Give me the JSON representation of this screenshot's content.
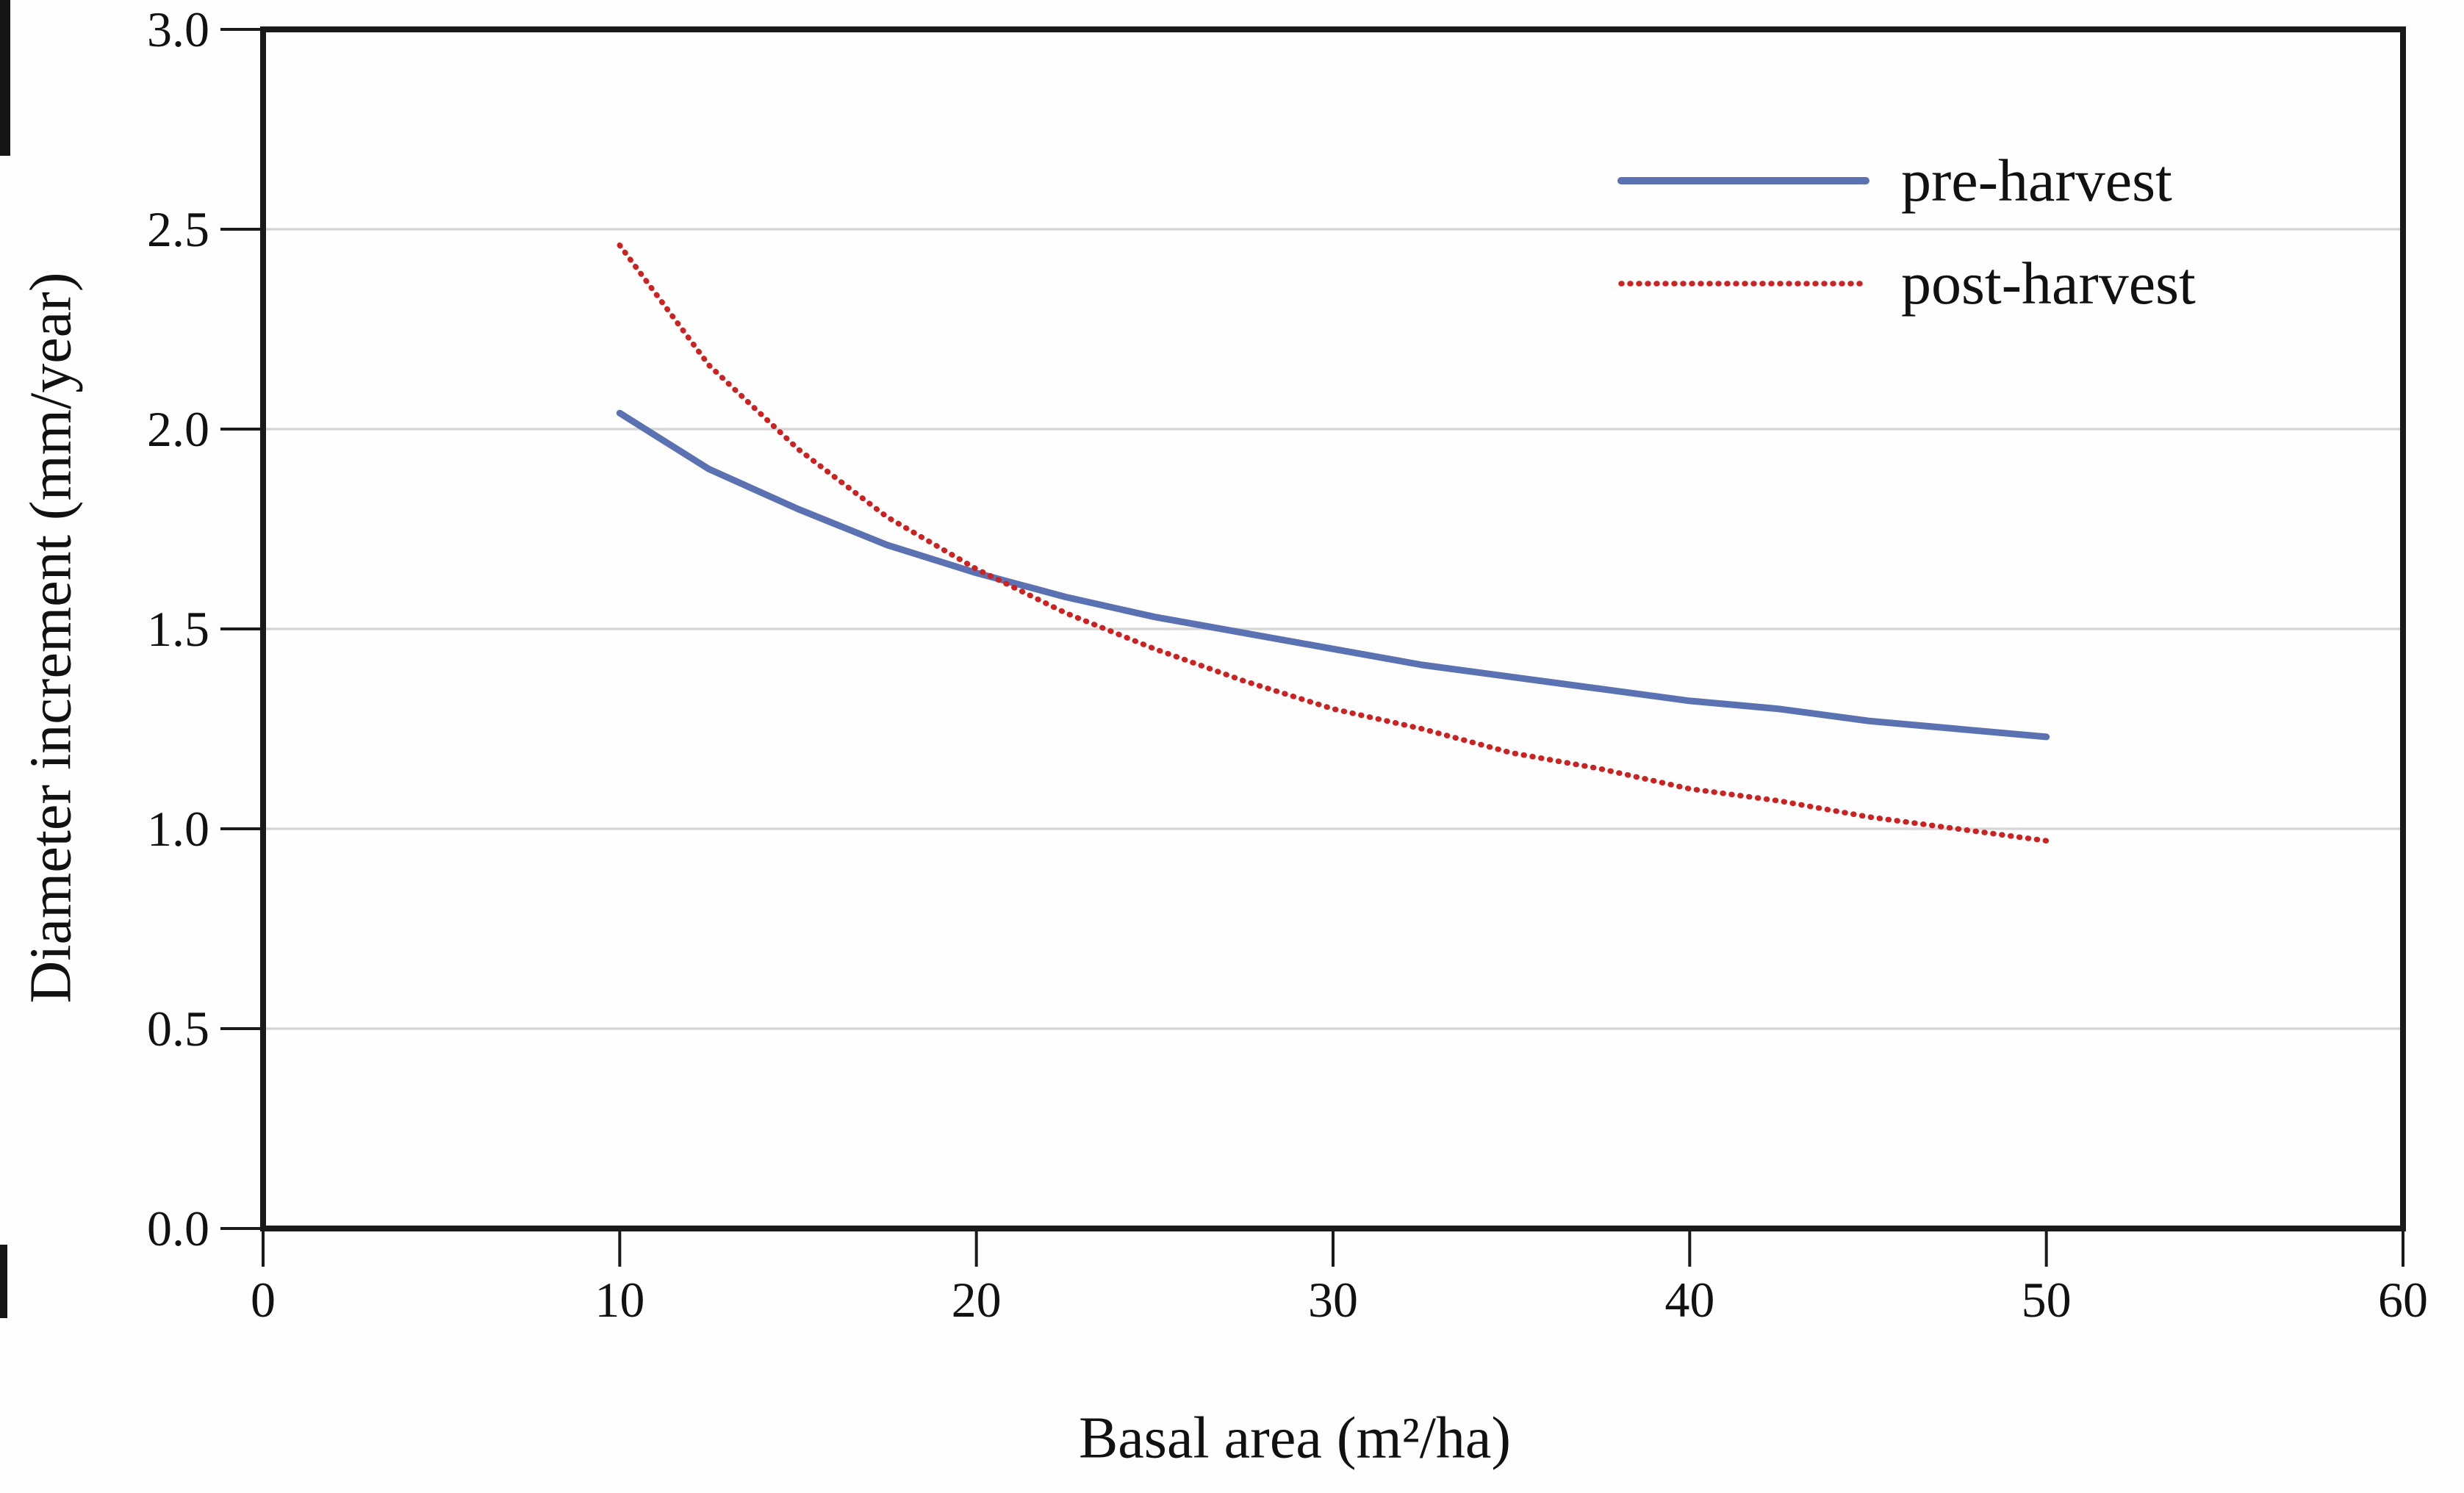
{
  "figure": {
    "background": "#fefefe",
    "axis_color": "#1a1a1a",
    "grid_color": "#d8d8d8"
  },
  "chart_data": {
    "type": "line",
    "title": "",
    "xlabel": "Basal area (m²/ha)",
    "ylabel": "Diameter increment (mm/year)",
    "xlim": [
      0,
      60
    ],
    "ylim": [
      0.0,
      3.0
    ],
    "xticks": [
      0,
      10,
      20,
      30,
      40,
      50,
      60
    ],
    "xtick_labels": [
      "0",
      "10",
      "20",
      "30",
      "40",
      "50",
      "60"
    ],
    "yticks": [
      0.0,
      0.5,
      1.0,
      1.5,
      2.0,
      2.5,
      3.0
    ],
    "ytick_labels": [
      "0.0",
      "0.5",
      "1.0",
      "1.5",
      "2.0",
      "2.5",
      "3.0"
    ],
    "grid": {
      "horizontal": true,
      "vertical": false
    },
    "legend_position": "top-right",
    "x": [
      10,
      12.5,
      15,
      17.5,
      20,
      22.5,
      25,
      27.5,
      30,
      32.5,
      35,
      37.5,
      40,
      42.5,
      45,
      47.5,
      50
    ],
    "series": [
      {
        "name": "pre-harvest",
        "color": "#5B72B2",
        "style": "solid",
        "values": [
          2.04,
          1.9,
          1.8,
          1.71,
          1.64,
          1.58,
          1.53,
          1.49,
          1.45,
          1.41,
          1.38,
          1.35,
          1.32,
          1.3,
          1.27,
          1.25,
          1.23
        ]
      },
      {
        "name": "post-harvest",
        "color": "#CC2222",
        "style": "dotted",
        "values": [
          2.46,
          2.16,
          1.95,
          1.78,
          1.65,
          1.54,
          1.45,
          1.37,
          1.3,
          1.25,
          1.19,
          1.15,
          1.1,
          1.07,
          1.03,
          1.0,
          0.97
        ]
      }
    ]
  }
}
